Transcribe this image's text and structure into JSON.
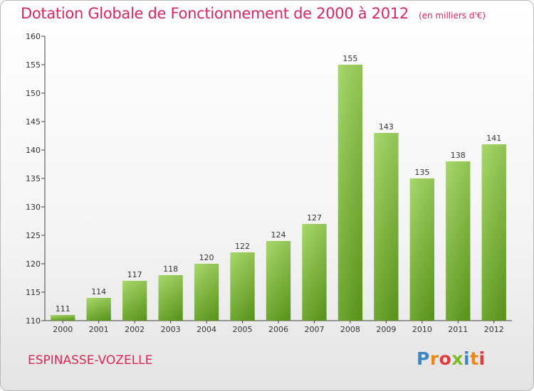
{
  "header": {
    "title": "Dotation Globale de Fonctionnement de 2000 à 2012",
    "subtitle": "(en milliers d'€)"
  },
  "footer": {
    "commune": "ESPINASSE-VOZELLE",
    "logo_text": "Proxiti"
  },
  "colors": {
    "bar_light": "#9fd45c",
    "bar_dark": "#5f9e1c",
    "title": "#d8285f"
  },
  "chart_data": {
    "type": "bar",
    "title": "Dotation Globale de Fonctionnement de 2000 à 2012",
    "subtitle": "(en milliers d'€)",
    "xlabel": "",
    "ylabel": "",
    "categories": [
      "2000",
      "2001",
      "2002",
      "2003",
      "2004",
      "2005",
      "2006",
      "2007",
      "2008",
      "2009",
      "2010",
      "2011",
      "2012"
    ],
    "values": [
      111,
      114,
      117,
      118,
      120,
      122,
      124,
      127,
      155,
      143,
      135,
      138,
      141
    ],
    "ylim": [
      110,
      160
    ],
    "yticks": [
      110,
      115,
      120,
      125,
      130,
      135,
      140,
      145,
      150,
      155,
      160
    ],
    "grid": false,
    "legend": "none"
  }
}
